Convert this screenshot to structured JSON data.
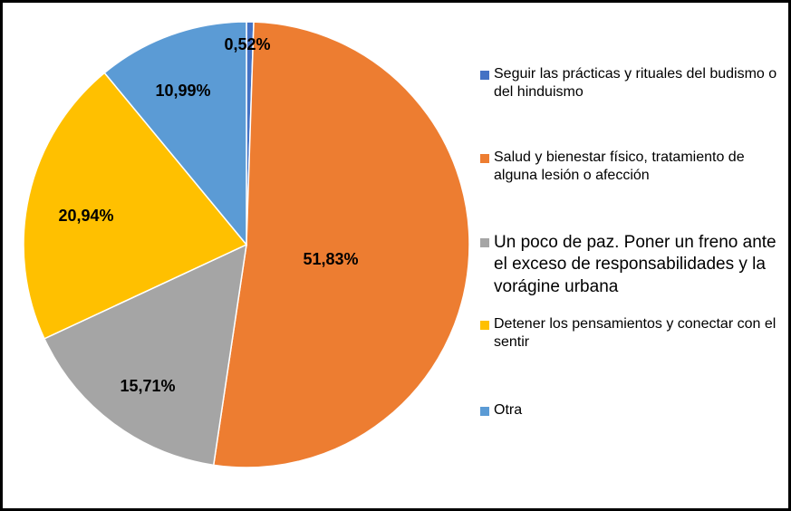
{
  "chart_data": {
    "type": "pie",
    "title": "",
    "slices": [
      {
        "label": "Seguir las prácticas y rituales del budismo o del hinduismo",
        "value": 0.52,
        "display": "0,52%",
        "color": "#4472c4"
      },
      {
        "label": "Salud y bienestar físico, tratamiento de alguna lesión o afección",
        "value": 51.83,
        "display": "51,83%",
        "color": "#ed7d31"
      },
      {
        "label": "Un poco de paz. Poner un freno ante el exceso de responsabilidades y la vorágine urbana",
        "value": 15.71,
        "display": "15,71%",
        "color": "#a5a5a5"
      },
      {
        "label": "Detener los pensamientos y conectar con el sentir",
        "value": 20.94,
        "display": "20,94%",
        "color": "#ffc000"
      },
      {
        "label": "Otra",
        "value": 10.99,
        "display": "10,99%",
        "color": "#5b9bd5"
      }
    ],
    "legend_position": "right"
  }
}
